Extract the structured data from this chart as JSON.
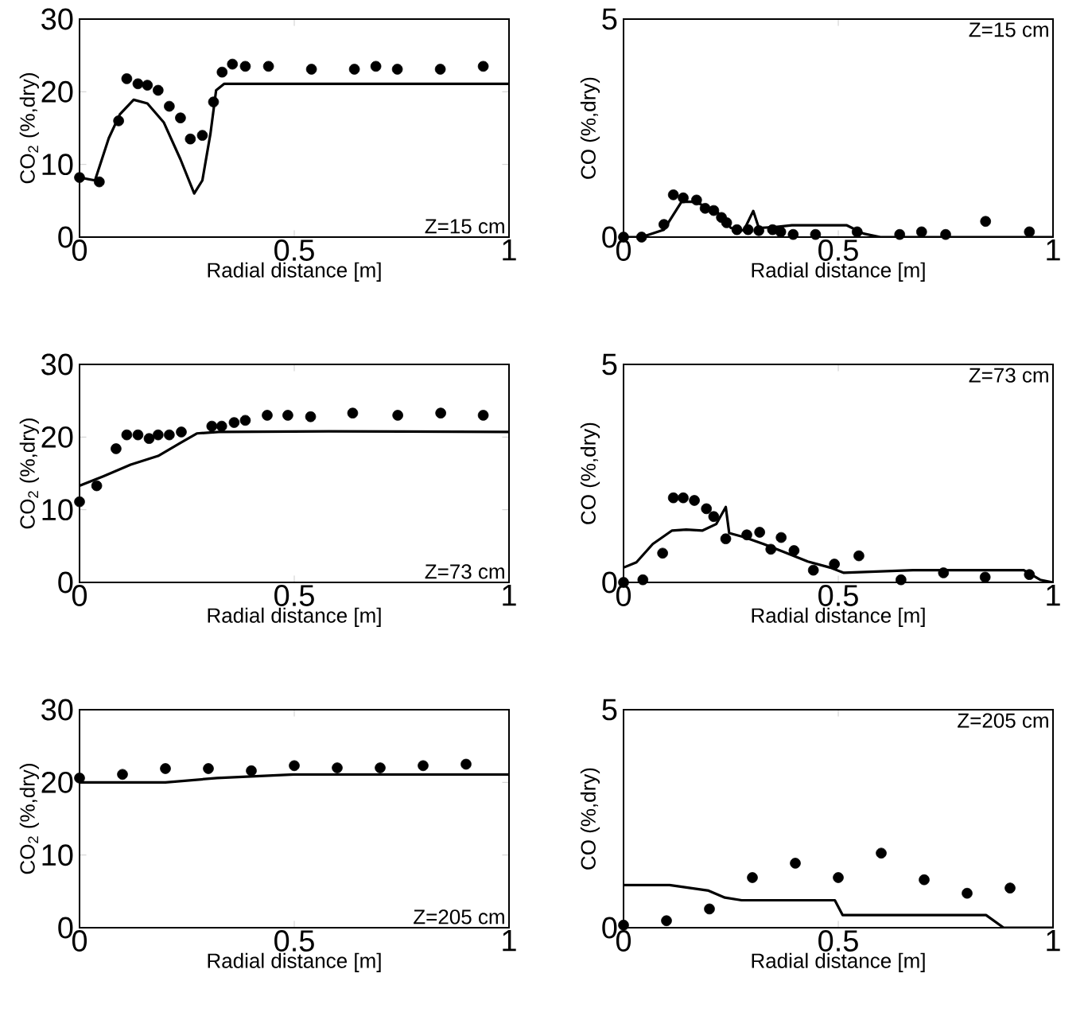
{
  "chart_data": [
    {
      "type": "scatter",
      "xlabel": "Radial distance [m]",
      "ylabel": "CO$_{2}$ (%,dry)",
      "annotations": [
        "Z=15 cm"
      ],
      "xlim": [
        0,
        1
      ],
      "ylim": [
        0,
        30
      ],
      "xticks": [
        0,
        0.5,
        1
      ],
      "yticks": [
        0,
        10,
        20,
        30
      ],
      "marker": "circle",
      "series": [
        {
          "color": "#000000",
          "x": [
            0,
            0.046,
            0.091,
            0.11,
            0.136,
            0.158,
            0.183,
            0.209,
            0.235,
            0.258,
            0.286,
            0.312,
            0.332,
            0.356,
            0.386,
            0.44,
            0.54,
            0.64,
            0.69,
            0.74,
            0.84,
            0.94
          ],
          "values": [
            8.2,
            7.6,
            16.0,
            21.8,
            21.1,
            20.9,
            20.2,
            18.0,
            16.4,
            13.5,
            14.0,
            18.6,
            22.7,
            23.8,
            23.5,
            23.5,
            23.1,
            23.1,
            23.5,
            23.1,
            23.1,
            23.5
          ]
        },
        {
          "type": "line",
          "marker": "none",
          "color": "#000000",
          "x": [
            0,
            0.036,
            0.068,
            0.094,
            0.126,
            0.158,
            0.196,
            0.235,
            0.267,
            0.286,
            0.305,
            0.318,
            0.337,
            1
          ],
          "values": [
            8.2,
            7.8,
            13.6,
            16.9,
            18.9,
            18.4,
            15.8,
            10.7,
            6.0,
            7.8,
            14.3,
            20.2,
            21.1,
            21.1
          ]
        }
      ]
    },
    {
      "type": "scatter",
      "xlabel": "Radial distance [m]",
      "ylabel": "CO (%,dry)",
      "annotations": [
        "Z=15 cm"
      ],
      "xlim": [
        0,
        1
      ],
      "ylim": [
        0,
        5
      ],
      "xticks": [
        0,
        0.5,
        1
      ],
      "yticks": [
        0,
        5
      ],
      "marker": "circle",
      "series": [
        {
          "color": "#000000",
          "x": [
            0,
            0.042,
            0.094,
            0.116,
            0.139,
            0.17,
            0.19,
            0.21,
            0.228,
            0.24,
            0.264,
            0.29,
            0.315,
            0.347,
            0.366,
            0.395,
            0.447,
            0.544,
            0.643,
            0.694,
            0.75,
            0.843,
            0.945
          ],
          "values": [
            0,
            0,
            0.29,
            0.97,
            0.9,
            0.85,
            0.66,
            0.61,
            0.45,
            0.33,
            0.17,
            0.17,
            0.15,
            0.17,
            0.12,
            0.06,
            0.06,
            0.12,
            0.06,
            0.12,
            0.06,
            0.36,
            0.12
          ]
        },
        {
          "type": "line",
          "marker": "none",
          "color": "#000000",
          "x": [
            0,
            0.042,
            0.094,
            0.135,
            0.167,
            0.219,
            0.25,
            0.28,
            0.302,
            0.315,
            0.353,
            0.392,
            0.52,
            0.559,
            0.598,
            1
          ],
          "values": [
            0,
            0,
            0.17,
            0.81,
            0.81,
            0.57,
            0.21,
            0.15,
            0.6,
            0.21,
            0.23,
            0.27,
            0.27,
            0.08,
            0,
            0
          ]
        }
      ]
    },
    {
      "type": "scatter",
      "xlabel": "Radial distance [m]",
      "ylabel": "CO$_{2}$ (%,dry)",
      "annotations": [
        "Z=73 cm"
      ],
      "xlim": [
        0,
        1
      ],
      "ylim": [
        0,
        30
      ],
      "xticks": [
        0,
        0.5,
        1
      ],
      "yticks": [
        0,
        10,
        20,
        30
      ],
      "marker": "circle",
      "series": [
        {
          "color": "#000000",
          "x": [
            0,
            0.04,
            0.085,
            0.11,
            0.136,
            0.162,
            0.183,
            0.209,
            0.237,
            0.308,
            0.331,
            0.36,
            0.386,
            0.437,
            0.485,
            0.538,
            0.636,
            0.741,
            0.841,
            0.94
          ],
          "values": [
            11.1,
            13.3,
            18.4,
            20.3,
            20.3,
            19.8,
            20.3,
            20.3,
            20.7,
            21.5,
            21.5,
            22.0,
            22.3,
            23.0,
            23.0,
            22.8,
            23.3,
            23.0,
            23.3,
            23.0
          ]
        },
        {
          "type": "line",
          "marker": "none",
          "color": "#000000",
          "x": [
            0,
            0.055,
            0.119,
            0.183,
            0.235,
            0.273,
            0.324,
            0.58,
            1
          ],
          "values": [
            13.3,
            14.6,
            16.2,
            17.4,
            19.2,
            20.5,
            20.7,
            20.8,
            20.7
          ]
        }
      ]
    },
    {
      "type": "scatter",
      "xlabel": "Radial distance [m]",
      "ylabel": "CO (%,dry)",
      "annotations": [
        "Z=73 cm"
      ],
      "xlim": [
        0,
        1
      ],
      "ylim": [
        0,
        5
      ],
      "xticks": [
        0,
        0.5,
        1
      ],
      "yticks": [
        0,
        5
      ],
      "marker": "circle",
      "series": [
        {
          "color": "#000000",
          "x": [
            0,
            0.045,
            0.091,
            0.116,
            0.139,
            0.165,
            0.193,
            0.21,
            0.238,
            0.287,
            0.317,
            0.343,
            0.367,
            0.397,
            0.442,
            0.491,
            0.548,
            0.646,
            0.745,
            0.842,
            0.945
          ],
          "values": [
            0,
            0.06,
            0.67,
            1.94,
            1.94,
            1.88,
            1.69,
            1.51,
            1.0,
            1.09,
            1.15,
            0.76,
            1.03,
            0.73,
            0.28,
            0.42,
            0.61,
            0.06,
            0.22,
            0.12,
            0.18
          ]
        },
        {
          "type": "line",
          "marker": "none",
          "color": "#000000",
          "x": [
            0,
            0.03,
            0.068,
            0.113,
            0.146,
            0.184,
            0.216,
            0.238,
            0.246,
            0.28,
            0.326,
            0.378,
            0.429,
            0.481,
            0.513,
            0.674,
            0.932,
            0.97,
            1
          ],
          "values": [
            0.34,
            0.46,
            0.88,
            1.19,
            1.21,
            1.19,
            1.34,
            1.73,
            1.13,
            1.04,
            0.88,
            0.68,
            0.48,
            0.34,
            0.22,
            0.28,
            0.28,
            0.06,
            0
          ]
        }
      ]
    },
    {
      "type": "scatter",
      "xlabel": "Radial distance [m]",
      "ylabel": "CO$_{2}$ (%,dry)",
      "annotations": [
        "Z=205 cm"
      ],
      "xlim": [
        0,
        1
      ],
      "ylim": [
        0,
        30
      ],
      "xticks": [
        0,
        0.5,
        1
      ],
      "yticks": [
        0,
        10,
        20,
        30
      ],
      "marker": "circle",
      "series": [
        {
          "color": "#000000",
          "x": [
            0,
            0.1,
            0.2,
            0.3,
            0.4,
            0.5,
            0.6,
            0.7,
            0.8,
            0.9
          ],
          "values": [
            20.6,
            21.1,
            21.9,
            21.9,
            21.6,
            22.3,
            22.0,
            22.0,
            22.3,
            22.5
          ]
        },
        {
          "type": "line",
          "marker": "none",
          "color": "#000000",
          "x": [
            0,
            0.2,
            0.32,
            0.5,
            1
          ],
          "values": [
            20.0,
            20.0,
            20.6,
            21.1,
            21.1
          ]
        }
      ]
    },
    {
      "type": "scatter",
      "xlabel": "Radial distance [m]",
      "ylabel": "CO (%,dry)",
      "annotations": [
        "Z=205 cm"
      ],
      "xlim": [
        0,
        1
      ],
      "ylim": [
        0,
        5
      ],
      "xticks": [
        0,
        0.5,
        1
      ],
      "yticks": [
        0,
        5
      ],
      "marker": "circle",
      "series": [
        {
          "color": "#000000",
          "x": [
            0,
            0.1,
            0.2,
            0.3,
            0.4,
            0.5,
            0.6,
            0.7,
            0.8,
            0.9
          ],
          "values": [
            0.06,
            0.16,
            0.43,
            1.15,
            1.48,
            1.15,
            1.71,
            1.1,
            0.79,
            0.91
          ]
        },
        {
          "type": "line",
          "marker": "none",
          "color": "#000000",
          "x": [
            0,
            0.107,
            0.198,
            0.236,
            0.275,
            0.492,
            0.51,
            0.844,
            0.885,
            1
          ],
          "values": [
            0.98,
            0.98,
            0.85,
            0.69,
            0.63,
            0.63,
            0.29,
            0.29,
            0,
            0
          ]
        }
      ]
    }
  ]
}
